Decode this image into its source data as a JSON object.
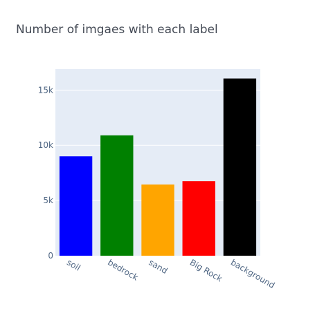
{
  "chart_data": {
    "type": "bar",
    "title": "Number of imgaes with each label",
    "xlabel": "",
    "ylabel": "",
    "categories": [
      "soil",
      "bedrock",
      "sand",
      "Big Rock",
      "background"
    ],
    "values": [
      9000,
      10900,
      6450,
      6750,
      16050
    ],
    "colors": [
      "#0000ff",
      "#008000",
      "#ffa500",
      "#ff0000",
      "#000000"
    ],
    "ylim": [
      0,
      16900
    ],
    "yticks": [
      0,
      5000,
      10000,
      15000
    ],
    "ytick_labels": [
      "0",
      "5k",
      "10k",
      "15k"
    ],
    "grid": true,
    "plot_background": "#e5ecf6"
  }
}
